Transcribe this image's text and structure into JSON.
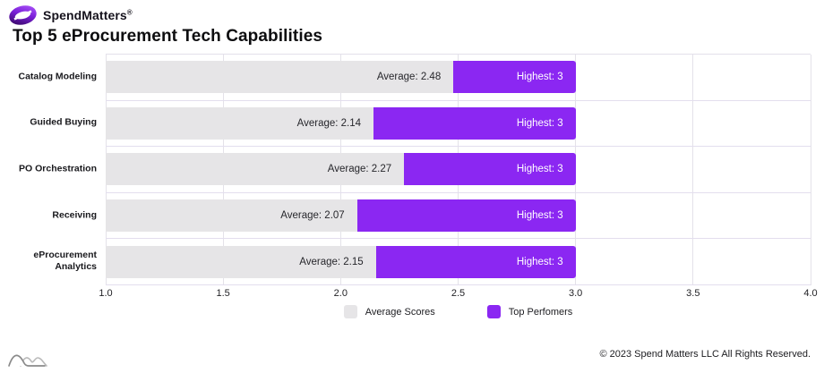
{
  "brand": {
    "name": "SpendMatters",
    "registered": "®",
    "logo_icon": "swirl-loop-icon",
    "logo_colors": [
      "#3c0a6e",
      "#8b27f2",
      "#a54df5"
    ]
  },
  "title": "Top 5 eProcurement Tech Capabilities",
  "chart_data": {
    "type": "bar",
    "orientation": "horizontal",
    "title": "Top 5 eProcurement Tech Capabilities",
    "categories": [
      "Catalog Modeling",
      "Guided Buying",
      "PO Orchestration",
      "Receiving",
      "eProcurement Analytics"
    ],
    "series": [
      {
        "name": "Average Scores",
        "values": [
          2.48,
          2.14,
          2.27,
          2.07,
          2.15
        ],
        "color": "#e6e5e7"
      },
      {
        "name": "Top Perfomers",
        "values": [
          3,
          3,
          3,
          3,
          3
        ],
        "color": "#8b27f2"
      }
    ],
    "bar_labels_average": [
      "Average: 2.48",
      "Average: 2.14",
      "Average: 2.27",
      "Average: 2.07",
      "Average: 2.15"
    ],
    "bar_labels_highest": [
      "Highest: 3",
      "Highest: 3",
      "Highest: 3",
      "Highest: 3",
      "Highest: 3"
    ],
    "xlim": [
      1.0,
      4.0
    ],
    "xticks": [
      1.0,
      1.5,
      2.0,
      2.5,
      3.0,
      3.5,
      4.0
    ],
    "xtick_labels": [
      "1.0",
      "1.5",
      "2.0",
      "2.5",
      "3.0",
      "3.5",
      "4.0"
    ],
    "grid": true,
    "legend_position": "bottom-center",
    "legend": [
      {
        "label": "Average Scores",
        "color": "#e6e5e7"
      },
      {
        "label": "Top Perfomers",
        "color": "#8b27f2"
      }
    ]
  },
  "footer": {
    "copyright": "© 2023 Spend Matters LLC All Rights Reserved."
  }
}
